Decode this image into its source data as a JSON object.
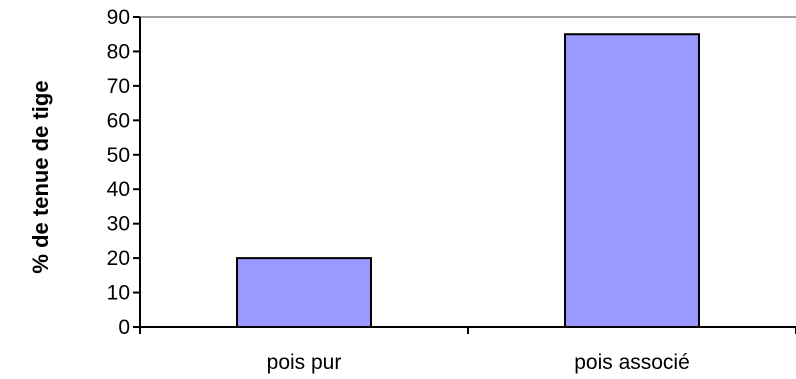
{
  "chart_data": {
    "type": "bar",
    "title": "",
    "xlabel": "",
    "ylabel": "% de tenue de tige",
    "categories": [
      "pois pur",
      "pois associé"
    ],
    "values": [
      20,
      85
    ],
    "ylim": [
      0,
      90
    ],
    "yticks": [
      0,
      10,
      20,
      30,
      40,
      50,
      60,
      70,
      80,
      90
    ],
    "grid": false,
    "legend": "none",
    "colors": {
      "bar_fill": "#9999ff",
      "bar_stroke": "#000000",
      "axis": "#000000",
      "plot_top_border": "#808080"
    }
  }
}
